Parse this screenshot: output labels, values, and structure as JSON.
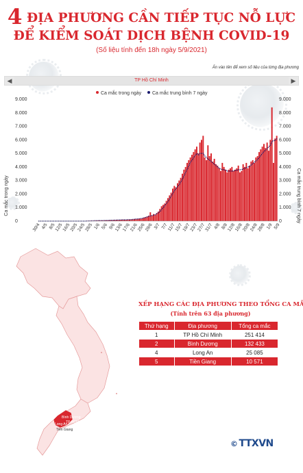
{
  "header": {
    "number": "4",
    "line1": "ĐỊA PHƯƠNG CẦN TIẾP TỤC NỖ LỰC",
    "line2": "ĐỂ KIỂM SOÁT DỊCH BỆNH COVID-19",
    "note": "(Số liệu tính đến 18h ngày 5/9/2021)"
  },
  "hint": "Ấn vào tên để xem số liệu của từng địa phương",
  "selector": {
    "province": "TP Hồ Chí Minh",
    "prev_icon": "chevron-left-icon",
    "next_icon": "chevron-right-icon"
  },
  "chart_data": {
    "type": "bar",
    "legend": [
      "Ca mắc trong ngày",
      "Ca mắc trung bình 7 ngày"
    ],
    "legend_position": "top",
    "ylabel_left": "Ca mắc trong ngày",
    "ylabel_right": "Ca mắc trung bình 7 ngày",
    "ylim": [
      0,
      9000
    ],
    "yticks_left": [
      "0",
      "1.000",
      "2.000",
      "3.000",
      "4.000",
      "5.000",
      "6.000",
      "7.000",
      "8.000",
      "9.000"
    ],
    "yticks_right": [
      "0",
      "1.000",
      "2.000",
      "3.000",
      "4.000",
      "5.000",
      "6.000",
      "7.000",
      "8.000",
      "9.000"
    ],
    "xticks": [
      "30/4",
      "4/5",
      "8/5",
      "12/5",
      "16/5",
      "20/5",
      "24/5",
      "28/5",
      "1/6",
      "5/6",
      "9/6",
      "13/6",
      "17/6",
      "21/6",
      "25/6",
      "29/6",
      "3/7",
      "7/7",
      "11/7",
      "15/7",
      "19/7",
      "23/7",
      "27/7",
      "31/7",
      "4/8",
      "8/8",
      "12/8",
      "16/8",
      "20/8",
      "24/8",
      "28/8",
      "1/9",
      "5/9"
    ],
    "x_start": "30/4",
    "x_end": "5/9",
    "daily_cases": [
      0,
      0,
      0,
      0,
      0,
      0,
      0,
      0,
      0,
      0,
      0,
      0,
      0,
      0,
      0,
      0,
      0,
      0,
      0,
      0,
      0,
      0,
      0,
      0,
      0,
      0,
      0,
      0,
      0,
      0,
      10,
      20,
      20,
      30,
      30,
      30,
      40,
      40,
      50,
      40,
      50,
      40,
      60,
      50,
      60,
      70,
      60,
      80,
      70,
      90,
      80,
      90,
      100,
      110,
      90,
      100,
      120,
      110,
      130,
      140,
      150,
      170,
      160,
      190,
      180,
      220,
      260,
      300,
      350,
      400,
      650,
      420,
      520,
      480,
      600,
      700,
      900,
      1100,
      1200,
      1300,
      1500,
      1700,
      1900,
      2100,
      2400,
      2600,
      2500,
      2800,
      3000,
      3200,
      3500,
      3800,
      4000,
      4300,
      4500,
      4700,
      4900,
      5100,
      5300,
      5500,
      5000,
      5800,
      6000,
      6300,
      4700,
      4500,
      5600,
      4800,
      5000,
      4400,
      4600,
      4200,
      4100,
      3900,
      3700,
      4300,
      4000,
      3800,
      3600,
      3800,
      3900,
      4000,
      3700,
      3800,
      3900,
      4100,
      3600,
      3700,
      4200,
      4000,
      4300,
      3900,
      4100,
      4400,
      4500,
      4300,
      4700,
      4800,
      5100,
      5300,
      5500,
      5700,
      5400,
      5800,
      5200,
      6000,
      8400,
      4300,
      6100,
      6300
    ],
    "avg7": [
      0,
      0,
      0,
      0,
      0,
      0,
      0,
      0,
      0,
      0,
      0,
      0,
      0,
      0,
      0,
      0,
      0,
      0,
      0,
      0,
      0,
      0,
      0,
      0,
      0,
      0,
      0,
      0,
      0,
      0,
      5,
      10,
      15,
      20,
      25,
      30,
      30,
      35,
      35,
      40,
      40,
      45,
      45,
      50,
      55,
      60,
      60,
      65,
      70,
      75,
      80,
      85,
      90,
      95,
      95,
      100,
      105,
      110,
      115,
      125,
      140,
      150,
      160,
      170,
      185,
      210,
      240,
      270,
      310,
      350,
      380,
      410,
      440,
      480,
      550,
      620,
      720,
      850,
      1000,
      1150,
      1300,
      1450,
      1650,
      1850,
      2050,
      2250,
      2400,
      2550,
      2700,
      2900,
      3100,
      3350,
      3600,
      3850,
      4100,
      4350,
      4500,
      4700,
      4850,
      5000,
      4900,
      5000,
      5000,
      5000,
      4800,
      4700,
      4600,
      4500,
      4400,
      4300,
      4200,
      4100,
      4000,
      3900,
      3850,
      3800,
      3800,
      3750,
      3700,
      3700,
      3700,
      3700,
      3700,
      3750,
      3750,
      3800,
      3800,
      3800,
      3850,
      3900,
      3950,
      4000,
      4050,
      4150,
      4250,
      4350,
      4450,
      4550,
      4700,
      4850,
      5000,
      5150,
      5250,
      5350,
      5500,
      5600,
      5900,
      5950,
      5950,
      6100
    ]
  },
  "ranking": {
    "title": "XẾP HẠNG CÁC ĐỊA PHƯƠNG THEO TỔNG CA MẮC",
    "subtitle": "(Tính trên 63 địa phương)",
    "headers": [
      "Thứ hạng",
      "Địa phương",
      "Tổng ca mắc"
    ],
    "rows": [
      [
        "1",
        "TP Hồ Chí Minh",
        "251 414"
      ],
      [
        "2",
        "Bình Dương",
        "132 433"
      ],
      [
        "4",
        "Long An",
        "25 085"
      ],
      [
        "5",
        "Tiền Giang",
        "10 571"
      ]
    ]
  },
  "map": {
    "labels": [
      "Bình Dương",
      "TP HCM",
      "Long An",
      "Tiền Giang"
    ],
    "highlight_color": "#d9272e",
    "base_color": "#e79a9a"
  },
  "logo": {
    "copyright": "©",
    "text": "TTXVN"
  },
  "colors": {
    "accent": "#d9272e",
    "avg_line": "#1a1a6e",
    "logo": "#1f4a8c"
  }
}
